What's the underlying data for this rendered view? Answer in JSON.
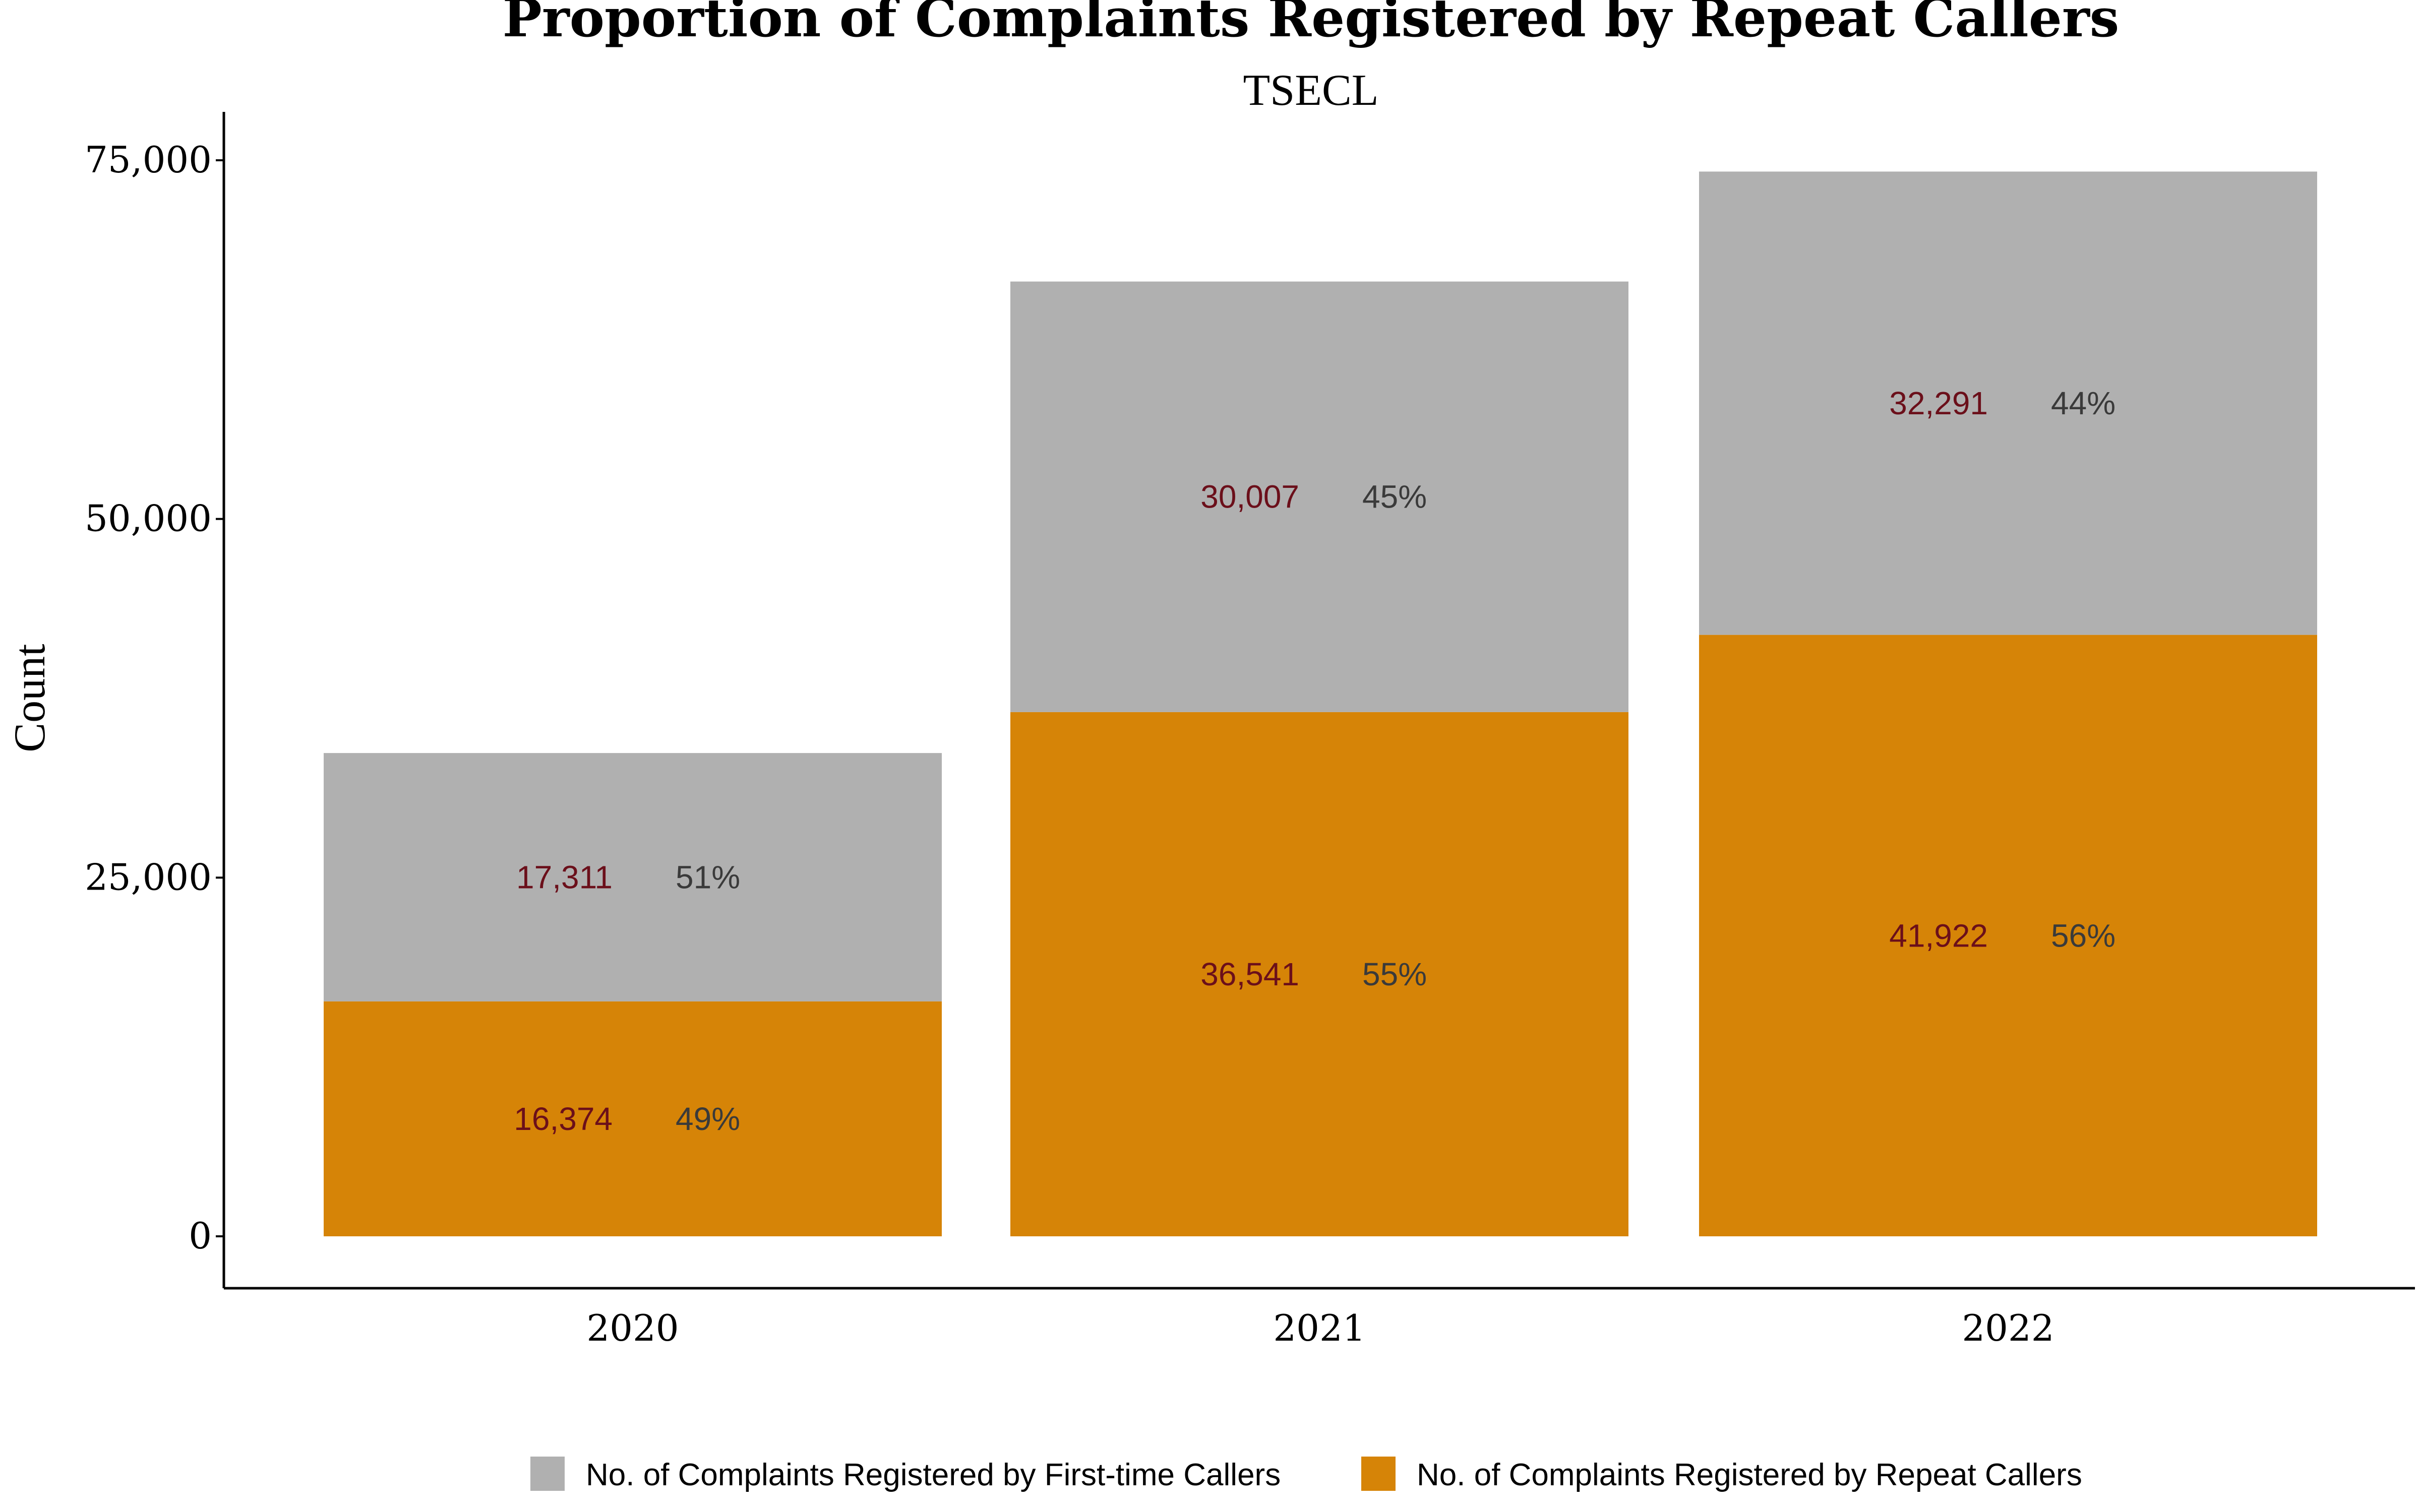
{
  "chart_data": {
    "type": "bar",
    "stacked": true,
    "title": "Proportion of Complaints Registered by Repeat Callers",
    "subtitle": "TSECL",
    "xlabel": "",
    "ylabel": "Count",
    "categories": [
      "2020",
      "2021",
      "2022"
    ],
    "ylim": [
      0,
      77500
    ],
    "yticks": [
      0,
      25000,
      50000,
      75000
    ],
    "ytick_labels": [
      "0",
      "25,000",
      "50,000",
      "75,000"
    ],
    "grid": false,
    "legend_position": "bottom",
    "series": [
      {
        "name": "No. of Complaints Registered by Repeat Callers",
        "color": "#d68407",
        "values": [
          16374,
          36541,
          41922
        ],
        "value_labels": [
          "16,374",
          "36,541",
          "41,922"
        ],
        "pct_labels": [
          "49%",
          "55%",
          "56%"
        ]
      },
      {
        "name": "No. of Complaints Registered by First-time Callers",
        "color": "#b0b0b0",
        "values": [
          17311,
          30007,
          32291
        ],
        "value_labels": [
          "17,311",
          "30,007",
          "32,291"
        ],
        "pct_labels": [
          "51%",
          "45%",
          "44%"
        ]
      }
    ],
    "legend_order": [
      1,
      0
    ]
  }
}
